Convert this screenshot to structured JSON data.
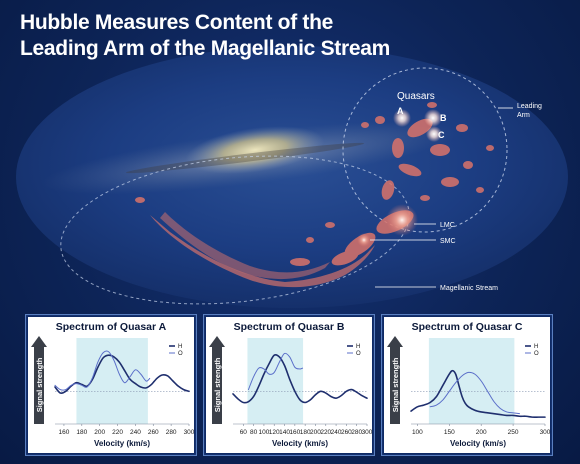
{
  "title": {
    "line1": "Hubble Measures Content of the",
    "line2": "Leading Arm of the Magellanic Stream"
  },
  "sky_labels": {
    "quasars": "Quasars",
    "a": "A",
    "b": "B",
    "c": "C",
    "leading_arm_line1": "Leading",
    "leading_arm_line2": "Arm",
    "lmc": "LMC",
    "smc": "SMC",
    "magellanic_stream": "Magellanic Stream"
  },
  "colors": {
    "background": "#0d2457",
    "milky_way_core": "#d9c98a",
    "gas_clouds": "#d9736a",
    "panel_background": "#ffffff",
    "panel_border": "#5a7fc0",
    "highlight_band": "#d6eef3",
    "series_h": "#1f2f6e",
    "series_o": "#5b6fc9",
    "arrow_fill": "#3a3f48"
  },
  "chart_data": [
    {
      "type": "line",
      "title": "Spectrum of Quasar A",
      "xlabel": "Velocity (km/s)",
      "ylabel": "Signal strength",
      "xlim": [
        150,
        300
      ],
      "xticks": [
        "160",
        "180",
        "200",
        "220",
        "240",
        "260",
        "280",
        "300"
      ],
      "xtick_values": [
        160,
        180,
        200,
        220,
        240,
        260,
        280,
        300
      ],
      "highlight_band": [
        174,
        254
      ],
      "legend": [
        "H",
        "O"
      ],
      "legend_position": "top-right",
      "series": [
        {
          "name": "H",
          "x": [
            150,
            156,
            162,
            168,
            174,
            180,
            186,
            192,
            198,
            204,
            210,
            216,
            222,
            228,
            234,
            240,
            246,
            252,
            258,
            264,
            270,
            276,
            282,
            288,
            294,
            300
          ],
          "y": [
            0.43,
            0.36,
            0.38,
            0.44,
            0.48,
            0.46,
            0.44,
            0.52,
            0.66,
            0.77,
            0.8,
            0.78,
            0.72,
            0.62,
            0.52,
            0.47,
            0.43,
            0.42,
            0.46,
            0.53,
            0.57,
            0.56,
            0.5,
            0.44,
            0.4,
            0.38
          ]
        },
        {
          "name": "O",
          "x": [
            150,
            156,
            162,
            168,
            174,
            180,
            186,
            192,
            198,
            204,
            210,
            216,
            222,
            228,
            234,
            240,
            246,
            252,
            256
          ],
          "y": [
            0.45,
            0.4,
            0.4,
            0.45,
            0.47,
            0.45,
            0.43,
            0.54,
            0.72,
            0.83,
            0.84,
            0.74,
            0.58,
            0.48,
            0.55,
            0.63,
            0.58,
            0.5,
            0.53
          ]
        }
      ]
    },
    {
      "type": "line",
      "title": "Spectrum of Quasar B",
      "xlabel": "Velocity (km/s)",
      "ylabel": "Signal strength",
      "xlim": [
        40,
        300
      ],
      "xticks": [
        "60",
        "80",
        "100",
        "120",
        "140",
        "160",
        "180",
        "200",
        "220",
        "240",
        "260",
        "280",
        "300"
      ],
      "xtick_values": [
        60,
        80,
        100,
        120,
        140,
        160,
        180,
        200,
        220,
        240,
        260,
        280,
        300
      ],
      "highlight_band": [
        68,
        176
      ],
      "legend": [
        "H",
        "O"
      ],
      "legend_position": "top-right",
      "series": [
        {
          "name": "H",
          "x": [
            40,
            50,
            60,
            70,
            80,
            90,
            100,
            110,
            120,
            130,
            140,
            150,
            160,
            170,
            180,
            190,
            200,
            210,
            220,
            230,
            240,
            250,
            260,
            270,
            280,
            290,
            300
          ],
          "y": [
            0.35,
            0.29,
            0.25,
            0.26,
            0.32,
            0.44,
            0.58,
            0.7,
            0.8,
            0.78,
            0.68,
            0.52,
            0.38,
            0.28,
            0.25,
            0.28,
            0.34,
            0.38,
            0.36,
            0.32,
            0.3,
            0.33,
            0.38,
            0.4,
            0.37,
            0.33,
            0.3
          ]
        },
        {
          "name": "O",
          "x": [
            70,
            80,
            90,
            100,
            110,
            120,
            130,
            140,
            150,
            160,
            170,
            175
          ],
          "y": [
            0.4,
            0.55,
            0.65,
            0.64,
            0.58,
            0.6,
            0.72,
            0.82,
            0.78,
            0.66,
            0.64,
            0.65
          ]
        }
      ]
    },
    {
      "type": "line",
      "title": "Spectrum of Quasar C",
      "xlabel": "Velocity (km/s)",
      "ylabel": "Signal strength",
      "xlim": [
        90,
        300
      ],
      "xticks": [
        "100",
        "150",
        "200",
        "250",
        "300"
      ],
      "xtick_values": [
        100,
        150,
        200,
        250,
        300
      ],
      "highlight_band": [
        118,
        252
      ],
      "legend": [
        "H",
        "O"
      ],
      "legend_position": "top-right",
      "series": [
        {
          "name": "H",
          "x": [
            90,
            100,
            110,
            120,
            130,
            140,
            150,
            155,
            160,
            165,
            170,
            175,
            180,
            190,
            200,
            210,
            220,
            230,
            240,
            250,
            260,
            270,
            280,
            290,
            300
          ],
          "y": [
            0.15,
            0.2,
            0.22,
            0.25,
            0.32,
            0.45,
            0.58,
            0.62,
            0.58,
            0.45,
            0.32,
            0.24,
            0.2,
            0.16,
            0.14,
            0.13,
            0.12,
            0.11,
            0.1,
            0.1,
            0.09,
            0.09,
            0.08,
            0.08,
            0.08
          ]
        },
        {
          "name": "O",
          "x": [
            120,
            130,
            140,
            150,
            160,
            170,
            180,
            190,
            200,
            210,
            220,
            230,
            240,
            250,
            260
          ],
          "y": [
            0.2,
            0.22,
            0.28,
            0.38,
            0.48,
            0.56,
            0.6,
            0.58,
            0.5,
            0.38,
            0.26,
            0.18,
            0.14,
            0.13,
            0.12
          ]
        }
      ]
    }
  ]
}
